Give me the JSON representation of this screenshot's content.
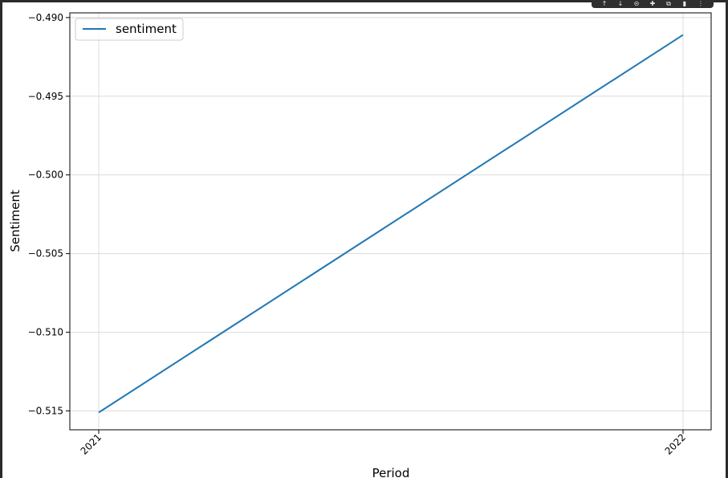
{
  "toolbar": {
    "buttons": [
      {
        "name": "arrow-up-icon",
        "glyph": "↑"
      },
      {
        "name": "arrow-down-icon",
        "glyph": "↓"
      },
      {
        "name": "link-icon",
        "glyph": "⊝"
      },
      {
        "name": "settings-icon",
        "glyph": "✚"
      },
      {
        "name": "open-external-icon",
        "glyph": "⧉"
      },
      {
        "name": "delete-icon",
        "glyph": "▮"
      },
      {
        "name": "more-icon",
        "glyph": "⋮"
      }
    ]
  },
  "chart_data": {
    "type": "line",
    "title": "",
    "xlabel": "Period",
    "ylabel": "Sentiment",
    "categories": [
      "2021",
      "2022"
    ],
    "series": [
      {
        "name": "sentiment",
        "values": [
          -0.5151,
          -0.4911
        ],
        "color": "#1f77b4"
      }
    ],
    "ylim": [
      -0.5162,
      -0.4897
    ],
    "yticks": [
      -0.515,
      -0.51,
      -0.505,
      -0.5,
      -0.495,
      -0.49
    ],
    "ytick_labels": [
      "−0.515",
      "−0.510",
      "−0.505",
      "−0.500",
      "−0.495",
      "−0.490"
    ],
    "grid": true,
    "legend": "upper left"
  }
}
